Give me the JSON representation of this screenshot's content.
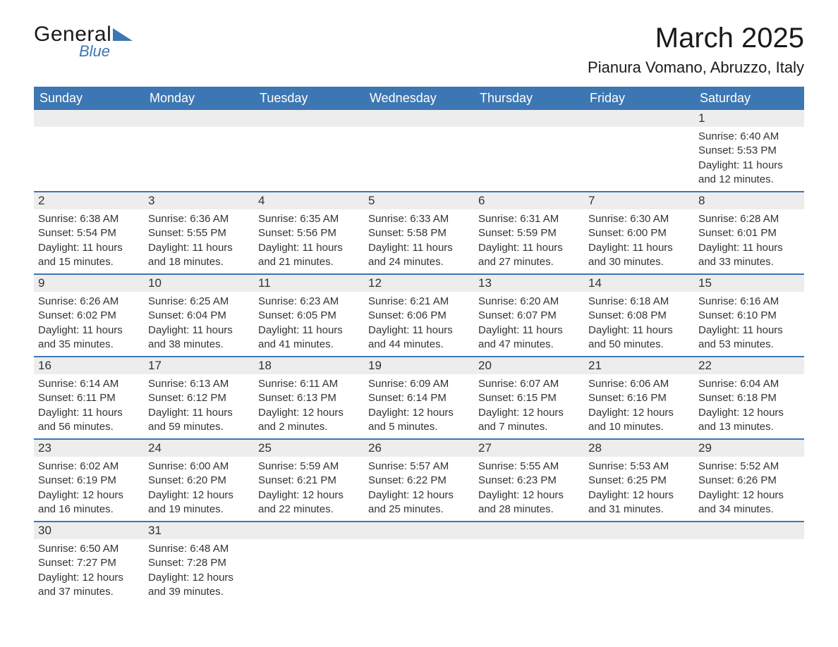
{
  "logo": {
    "text_general": "General",
    "text_blue": "Blue",
    "triangle_color": "#3d77b3"
  },
  "title": "March 2025",
  "location": "Pianura Vomano, Abruzzo, Italy",
  "colors": {
    "header_bg": "#3d77b3",
    "header_text": "#ffffff",
    "row_divider": "#3d77b3",
    "daynum_bg": "#ededed",
    "body_text": "#333333",
    "page_bg": "#ffffff"
  },
  "typography": {
    "title_fontsize_pt": 30,
    "location_fontsize_pt": 16,
    "header_fontsize_pt": 13,
    "daynum_fontsize_pt": 13,
    "body_fontsize_pt": 11
  },
  "day_headers": [
    "Sunday",
    "Monday",
    "Tuesday",
    "Wednesday",
    "Thursday",
    "Friday",
    "Saturday"
  ],
  "label_sunrise": "Sunrise: ",
  "label_sunset": "Sunset: ",
  "label_daylight": "Daylight: ",
  "weeks": [
    [
      null,
      null,
      null,
      null,
      null,
      null,
      {
        "n": "1",
        "sunrise": "6:40 AM",
        "sunset": "5:53 PM",
        "daylight": "11 hours and 12 minutes."
      }
    ],
    [
      {
        "n": "2",
        "sunrise": "6:38 AM",
        "sunset": "5:54 PM",
        "daylight": "11 hours and 15 minutes."
      },
      {
        "n": "3",
        "sunrise": "6:36 AM",
        "sunset": "5:55 PM",
        "daylight": "11 hours and 18 minutes."
      },
      {
        "n": "4",
        "sunrise": "6:35 AM",
        "sunset": "5:56 PM",
        "daylight": "11 hours and 21 minutes."
      },
      {
        "n": "5",
        "sunrise": "6:33 AM",
        "sunset": "5:58 PM",
        "daylight": "11 hours and 24 minutes."
      },
      {
        "n": "6",
        "sunrise": "6:31 AM",
        "sunset": "5:59 PM",
        "daylight": "11 hours and 27 minutes."
      },
      {
        "n": "7",
        "sunrise": "6:30 AM",
        "sunset": "6:00 PM",
        "daylight": "11 hours and 30 minutes."
      },
      {
        "n": "8",
        "sunrise": "6:28 AM",
        "sunset": "6:01 PM",
        "daylight": "11 hours and 33 minutes."
      }
    ],
    [
      {
        "n": "9",
        "sunrise": "6:26 AM",
        "sunset": "6:02 PM",
        "daylight": "11 hours and 35 minutes."
      },
      {
        "n": "10",
        "sunrise": "6:25 AM",
        "sunset": "6:04 PM",
        "daylight": "11 hours and 38 minutes."
      },
      {
        "n": "11",
        "sunrise": "6:23 AM",
        "sunset": "6:05 PM",
        "daylight": "11 hours and 41 minutes."
      },
      {
        "n": "12",
        "sunrise": "6:21 AM",
        "sunset": "6:06 PM",
        "daylight": "11 hours and 44 minutes."
      },
      {
        "n": "13",
        "sunrise": "6:20 AM",
        "sunset": "6:07 PM",
        "daylight": "11 hours and 47 minutes."
      },
      {
        "n": "14",
        "sunrise": "6:18 AM",
        "sunset": "6:08 PM",
        "daylight": "11 hours and 50 minutes."
      },
      {
        "n": "15",
        "sunrise": "6:16 AM",
        "sunset": "6:10 PM",
        "daylight": "11 hours and 53 minutes."
      }
    ],
    [
      {
        "n": "16",
        "sunrise": "6:14 AM",
        "sunset": "6:11 PM",
        "daylight": "11 hours and 56 minutes."
      },
      {
        "n": "17",
        "sunrise": "6:13 AM",
        "sunset": "6:12 PM",
        "daylight": "11 hours and 59 minutes."
      },
      {
        "n": "18",
        "sunrise": "6:11 AM",
        "sunset": "6:13 PM",
        "daylight": "12 hours and 2 minutes."
      },
      {
        "n": "19",
        "sunrise": "6:09 AM",
        "sunset": "6:14 PM",
        "daylight": "12 hours and 5 minutes."
      },
      {
        "n": "20",
        "sunrise": "6:07 AM",
        "sunset": "6:15 PM",
        "daylight": "12 hours and 7 minutes."
      },
      {
        "n": "21",
        "sunrise": "6:06 AM",
        "sunset": "6:16 PM",
        "daylight": "12 hours and 10 minutes."
      },
      {
        "n": "22",
        "sunrise": "6:04 AM",
        "sunset": "6:18 PM",
        "daylight": "12 hours and 13 minutes."
      }
    ],
    [
      {
        "n": "23",
        "sunrise": "6:02 AM",
        "sunset": "6:19 PM",
        "daylight": "12 hours and 16 minutes."
      },
      {
        "n": "24",
        "sunrise": "6:00 AM",
        "sunset": "6:20 PM",
        "daylight": "12 hours and 19 minutes."
      },
      {
        "n": "25",
        "sunrise": "5:59 AM",
        "sunset": "6:21 PM",
        "daylight": "12 hours and 22 minutes."
      },
      {
        "n": "26",
        "sunrise": "5:57 AM",
        "sunset": "6:22 PM",
        "daylight": "12 hours and 25 minutes."
      },
      {
        "n": "27",
        "sunrise": "5:55 AM",
        "sunset": "6:23 PM",
        "daylight": "12 hours and 28 minutes."
      },
      {
        "n": "28",
        "sunrise": "5:53 AM",
        "sunset": "6:25 PM",
        "daylight": "12 hours and 31 minutes."
      },
      {
        "n": "29",
        "sunrise": "5:52 AM",
        "sunset": "6:26 PM",
        "daylight": "12 hours and 34 minutes."
      }
    ],
    [
      {
        "n": "30",
        "sunrise": "6:50 AM",
        "sunset": "7:27 PM",
        "daylight": "12 hours and 37 minutes."
      },
      {
        "n": "31",
        "sunrise": "6:48 AM",
        "sunset": "7:28 PM",
        "daylight": "12 hours and 39 minutes."
      },
      null,
      null,
      null,
      null,
      null
    ]
  ]
}
